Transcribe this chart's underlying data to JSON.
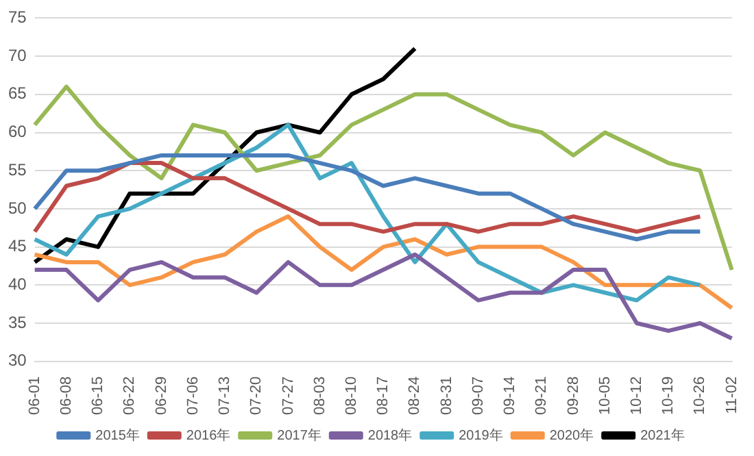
{
  "chart_data": {
    "type": "line",
    "categories": [
      "06-01",
      "06-08",
      "06-15",
      "06-22",
      "06-29",
      "07-06",
      "07-13",
      "07-20",
      "07-27",
      "08-03",
      "08-10",
      "08-17",
      "08-24",
      "08-31",
      "09-07",
      "09-14",
      "09-21",
      "09-28",
      "10-05",
      "10-12",
      "10-19",
      "10-26",
      "11-02"
    ],
    "series": [
      {
        "name": "2015年",
        "color": "#4a7ebb",
        "values": [
          50,
          55,
          55,
          56,
          57,
          57,
          57,
          57,
          57,
          56,
          55,
          53,
          54,
          53,
          52,
          52,
          50,
          48,
          47,
          46,
          47,
          47,
          null
        ]
      },
      {
        "name": "2016年",
        "color": "#be4b48",
        "values": [
          47,
          53,
          54,
          56,
          56,
          54,
          54,
          52,
          50,
          48,
          48,
          47,
          48,
          48,
          47,
          48,
          48,
          49,
          48,
          47,
          48,
          49,
          null
        ]
      },
      {
        "name": "2017年",
        "color": "#98b954",
        "values": [
          61,
          66,
          61,
          57,
          54,
          61,
          60,
          55,
          56,
          57,
          61,
          63,
          65,
          65,
          63,
          61,
          60,
          57,
          60,
          58,
          56,
          55,
          42
        ]
      },
      {
        "name": "2018年",
        "color": "#7d60a0",
        "values": [
          42,
          42,
          38,
          42,
          43,
          41,
          41,
          39,
          43,
          40,
          40,
          42,
          44,
          41,
          38,
          39,
          39,
          42,
          42,
          35,
          34,
          35,
          33
        ]
      },
      {
        "name": "2019年",
        "color": "#46aac5",
        "values": [
          46,
          44,
          49,
          50,
          52,
          54,
          56,
          58,
          61,
          54,
          56,
          49,
          43,
          48,
          43,
          41,
          39,
          40,
          39,
          38,
          41,
          40,
          null
        ]
      },
      {
        "name": "2020年",
        "color": "#f79646",
        "values": [
          44,
          43,
          43,
          40,
          41,
          43,
          44,
          47,
          49,
          45,
          42,
          45,
          46,
          44,
          45,
          45,
          45,
          43,
          40,
          40,
          40,
          40,
          37
        ]
      },
      {
        "name": "2021年",
        "color": "#000000",
        "values": [
          43,
          46,
          45,
          52,
          52,
          52,
          56,
          60,
          61,
          60,
          65,
          67,
          71,
          null,
          null,
          null,
          null,
          null,
          null,
          null,
          null,
          null,
          null
        ]
      }
    ],
    "ylim": [
      30,
      75
    ],
    "yticks": [
      30,
      35,
      40,
      45,
      50,
      55,
      60,
      65,
      70,
      75
    ],
    "grid": "y",
    "legend": "bottom",
    "marker": "none",
    "line_style": "solid"
  }
}
